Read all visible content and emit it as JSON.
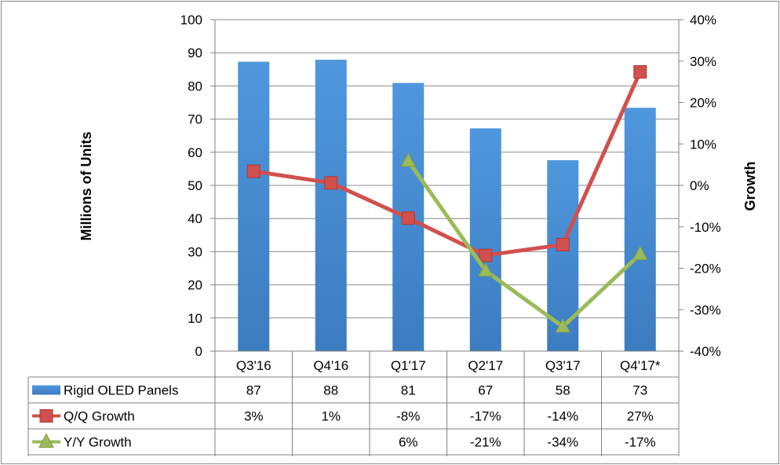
{
  "chart_data": {
    "type": "bar",
    "categories": [
      "Q3'16",
      "Q4'16",
      "Q1'17",
      "Q2'17",
      "Q3'17",
      "Q4'17*"
    ],
    "ylabel": "Millions of Units",
    "ylabel_right": "Growth",
    "ylim": [
      0,
      100
    ],
    "yticks": [
      "0",
      "10",
      "20",
      "30",
      "40",
      "50",
      "60",
      "70",
      "80",
      "90",
      "100"
    ],
    "ylim_right": [
      -40,
      40
    ],
    "yticks_right": [
      "-40%",
      "-30%",
      "-20%",
      "-10%",
      "0%",
      "10%",
      "20%",
      "30%",
      "40%"
    ],
    "grid": true,
    "legend_position": "data-table",
    "series": [
      {
        "name": "Rigid OLED Panels",
        "kind": "bar",
        "axis": "left",
        "color": "#4a90d9",
        "values": [
          87.3,
          87.9,
          80.9,
          67.2,
          57.6,
          73.4
        ],
        "table_labels": [
          "87",
          "88",
          "81",
          "67",
          "58",
          "73"
        ]
      },
      {
        "name": "Q/Q Growth",
        "kind": "line",
        "marker": "square",
        "axis": "right",
        "color": "#d0504d",
        "values": [
          3.4,
          0.6,
          -7.9,
          -16.9,
          -14.3,
          27.4
        ],
        "table_labels": [
          "3%",
          "1%",
          "-8%",
          "-17%",
          "-14%",
          "27%"
        ]
      },
      {
        "name": "Y/Y Growth",
        "kind": "line",
        "marker": "triangle",
        "axis": "right",
        "color": "#9bbb59",
        "values": [
          null,
          null,
          5.9,
          -20.6,
          -34.1,
          -16.6
        ],
        "table_labels": [
          "",
          "",
          "6%",
          "-21%",
          "-34%",
          "-17%"
        ]
      }
    ]
  }
}
